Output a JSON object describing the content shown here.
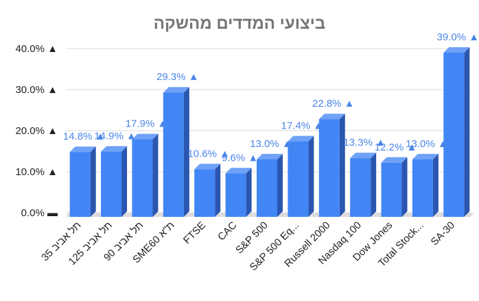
{
  "chart_data": {
    "type": "bar",
    "title": "ביצועי המדדים מהשקה",
    "xlabel": "",
    "ylabel": "",
    "ylim": [
      0,
      40
    ],
    "grid": true,
    "legend": "none",
    "yticks": [
      "0.0% ▬",
      "10.0% ▲",
      "20.0% ▲",
      "30.0% ▲",
      "40.0% ▲"
    ],
    "categories": [
      "תל אביב 35",
      "תל אביב 125",
      "תל אביב 90",
      "SME60 ת\"א",
      "FTSE",
      "CAC",
      "S&P 500",
      "S&P 500 Eq...",
      "Russell 2000",
      "Nasdaq 100",
      "Dow Jones",
      "Total Stock...",
      "SA-30"
    ],
    "values": [
      14.8,
      14.9,
      17.9,
      29.3,
      10.6,
      9.6,
      13.0,
      17.4,
      22.8,
      13.3,
      12.2,
      13.0,
      39.0
    ],
    "data_labels": [
      "14.8% ▲",
      "14.9% ▲",
      "17.9% ▲",
      "29.3% ▲",
      "10.6% ▲",
      "9.6% ▲",
      "13.0% ▲",
      "17.4% ▲",
      "22.8% ▲",
      "13.3% ▲",
      "12.2% ▲",
      "13.0% ▲",
      "39.0% ▲"
    ],
    "colors": {
      "bar_front": "#4285f4",
      "bar_side": "#2a56b0",
      "bar_top": "#6fa2f7",
      "label": "#4a86e8",
      "grid": "#d9d9d9",
      "floor": "#dcdcdc"
    }
  }
}
